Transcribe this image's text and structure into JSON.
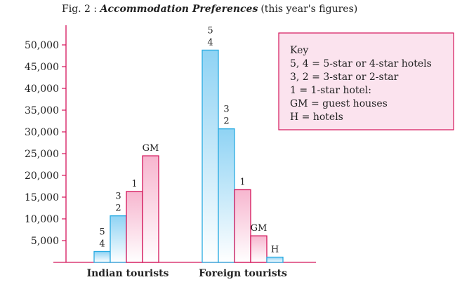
{
  "chart_data": {
    "type": "bar",
    "title_prefix": "Fig. 2 : ",
    "title": "Accommodation Preferences",
    "subtitle": "(this year's figures)",
    "xlabel": "",
    "ylabel": "",
    "ylim": [
      0,
      50000
    ],
    "yticks": [
      "5,000",
      "10,000",
      "15,000",
      "20,000",
      "25,000",
      "30,000",
      "35,000",
      "40,000",
      "45,000",
      "50,000"
    ],
    "ytick_values": [
      5000,
      10000,
      15000,
      20000,
      25000,
      30000,
      35000,
      40000,
      45000,
      50000
    ],
    "groups": [
      {
        "name": "Indian tourists",
        "bars": [
          {
            "label": [
              "5",
              "4"
            ],
            "value": 2500,
            "style": "blue"
          },
          {
            "label": [
              "3",
              "2"
            ],
            "value": 10700,
            "style": "blue"
          },
          {
            "label": [
              "1"
            ],
            "value": 16300,
            "style": "pink"
          },
          {
            "label": [
              "GM"
            ],
            "value": 24500,
            "style": "pink"
          }
        ]
      },
      {
        "name": "Foreign tourists",
        "bars": [
          {
            "label": [
              "5",
              "4"
            ],
            "value": 48800,
            "style": "blue"
          },
          {
            "label": [
              "3",
              "2"
            ],
            "value": 30700,
            "style": "blue"
          },
          {
            "label": [
              "1"
            ],
            "value": 16700,
            "style": "pink"
          },
          {
            "label": [
              "GM"
            ],
            "value": 6100,
            "style": "pink"
          },
          {
            "label": [
              "H"
            ],
            "value": 1200,
            "style": "blue"
          }
        ]
      }
    ],
    "legend": {
      "placement": "top-right",
      "title": "Key",
      "lines": [
        "5, 4 = 5-star or 4-star hotels",
        "3, 2 = 3-star or 2-star",
        "1 = 1-star hotel:",
        "GM = guest houses",
        "H = hotels"
      ]
    },
    "grid": false
  },
  "colors": {
    "axis": "#d4145a",
    "blue_stroke": "#29abe2",
    "blue_fill_top": "#8fd3f4",
    "blue_fill_bottom": "#ffffff",
    "pink_stroke": "#d4145a",
    "pink_fill_top": "#f7b6cf",
    "pink_fill_bottom": "#ffffff",
    "key_stroke": "#d4145a",
    "key_fill": "#fbe3ee"
  }
}
